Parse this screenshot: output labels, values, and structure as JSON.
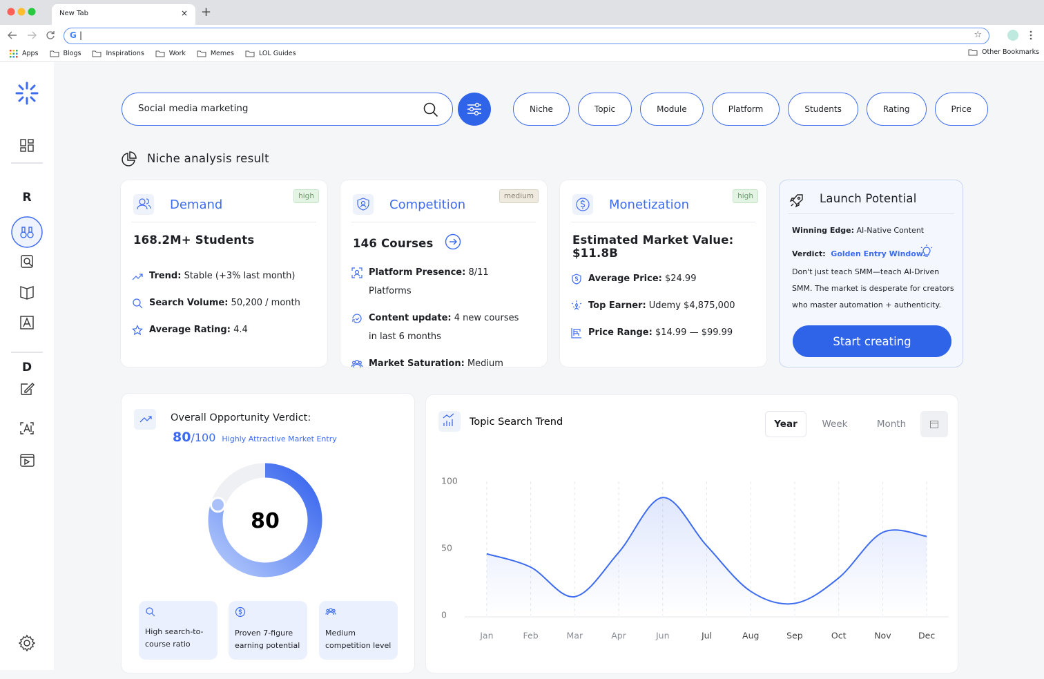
{
  "browser": {
    "tab": "New Tab",
    "bookmarks": [
      "Apps",
      "Blogs",
      "Inspirations",
      "Work",
      "Memes",
      "LOL Guides"
    ],
    "other_bookmarks": "Other Bookmarks"
  },
  "sidebar": {
    "section_r": "R",
    "section_d": "D"
  },
  "search": {
    "query": "Social media marketing",
    "filters": [
      "Niche",
      "Topic",
      "Module",
      "Platform",
      "Students",
      "Rating",
      "Price"
    ]
  },
  "section_title": "Niche analysis result",
  "cards": [
    {
      "title": "Demand",
      "badge": "high",
      "headline": "168.2M+ Students",
      "items": [
        {
          "label": "Trend:",
          "value": "Stable (+3% last month)"
        },
        {
          "label": "Search Volume:",
          "value": "50,200 / month"
        },
        {
          "label": "Average Rating:",
          "value": "4.4"
        }
      ]
    },
    {
      "title": "Competition",
      "badge": "medium",
      "headline": "146 Courses",
      "items": [
        {
          "label": "Platform Presence:",
          "value": "8/11 Platforms"
        },
        {
          "label": "Content update:",
          "value": "4 new courses in last 6 months"
        },
        {
          "label": "Market Saturation:",
          "value": "Medium"
        }
      ]
    },
    {
      "title": "Monetization",
      "badge": "high",
      "headline": "Estimated Market Value: $11.8B",
      "items": [
        {
          "label": "Average Price:",
          "value": "$24.99"
        },
        {
          "label": "Top Earner:",
          "value": "Udemy $4,875,000"
        },
        {
          "label": "Price Range:",
          "value": "$14.99 — $99.99"
        }
      ]
    }
  ],
  "launch": {
    "title": "Launch Potential",
    "edge_label": "Winning Edge:",
    "edge": "AI-Native Content",
    "verdict_label": "Verdict:",
    "verdict": "Golden Entry Window.",
    "text": "Don't just teach SMM—teach AI-Driven SMM. The market is desperate for creators who master automation + authenticity.",
    "button": "Start creating"
  },
  "verdict": {
    "title": "Overall Opportunity Verdict:",
    "score": 80,
    "scale": {
      "value": 100,
      "label": "/100"
    },
    "rating": "Highly Attractive Market Entry",
    "highlights": [
      "High search-to-course ratio",
      "Proven 7-figure earning potential",
      "Medium competition level"
    ]
  },
  "trend_controls": {
    "tabs": [
      "Year",
      "Week",
      "Month"
    ],
    "active": 0
  },
  "chart_data": {
    "type": "line",
    "title": "Topic Search Trend",
    "categories": [
      "Jan",
      "Feb",
      "Mar",
      "Apr",
      "Jun",
      "Jul",
      "Aug",
      "Sep",
      "Oct",
      "Nov",
      "Dec"
    ],
    "values": [
      46,
      36,
      14,
      47,
      88,
      52,
      18,
      9,
      28,
      62,
      59
    ],
    "color": "#3d6bef",
    "ylim": [
      0,
      100
    ],
    "yticks": [
      0,
      50,
      100
    ],
    "grid": true
  }
}
